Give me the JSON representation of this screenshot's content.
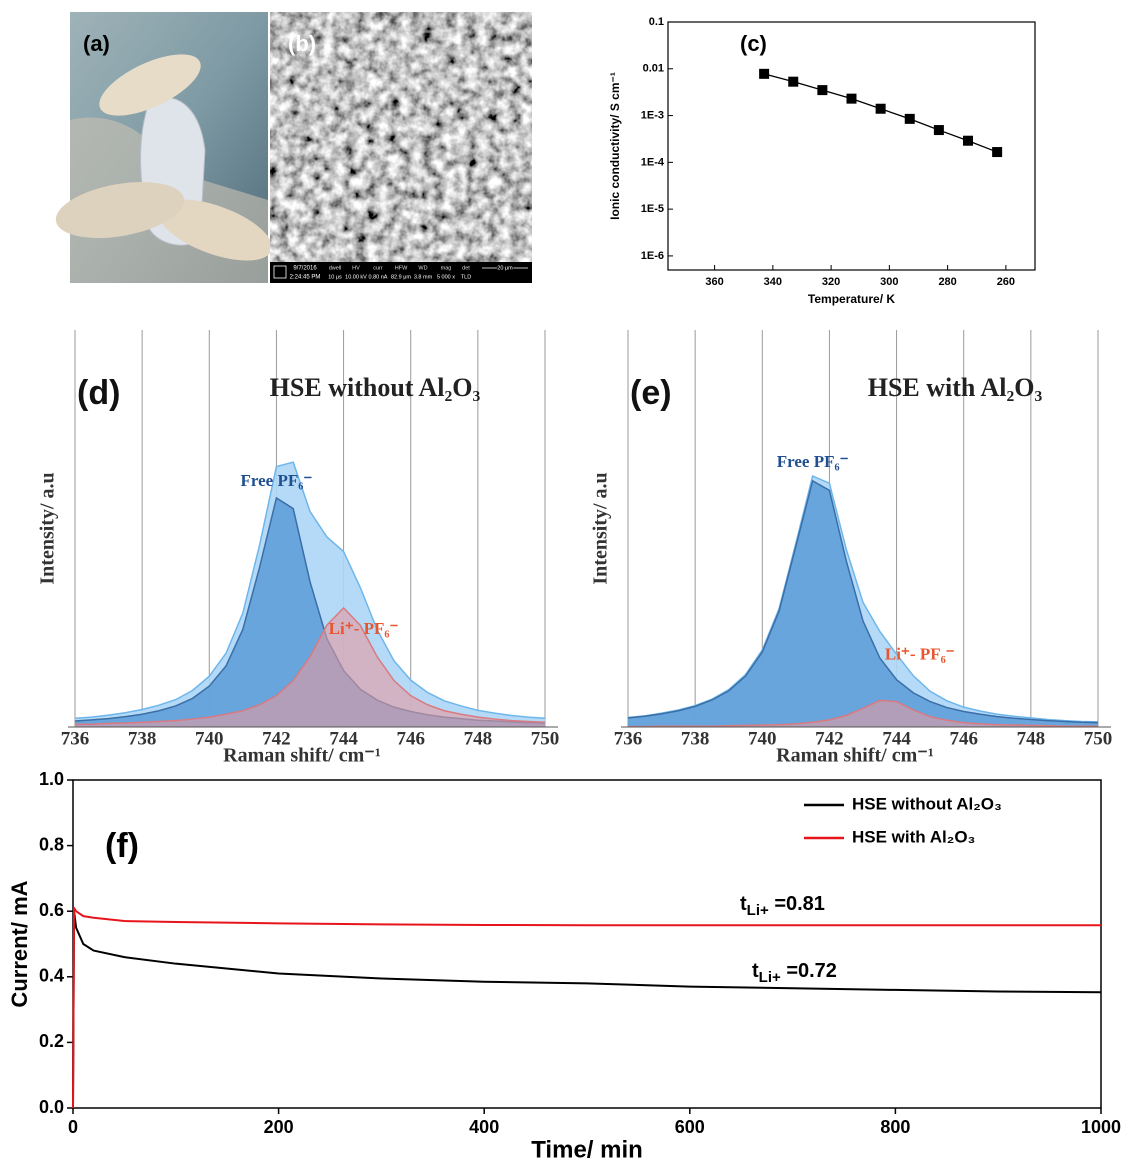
{
  "chart_data": [
    {
      "type": "photo",
      "label": "(a)"
    },
    {
      "type": "micrograph",
      "label": "(b)",
      "info_bar": {
        "date": "9/7/2016",
        "time": "2:24:45 PM",
        "fields": [
          {
            "name": "dwell",
            "value": "10 μs"
          },
          {
            "name": "HV",
            "value": "10.00 kV"
          },
          {
            "name": "curr",
            "value": "0.80 nA"
          },
          {
            "name": "HFW",
            "value": "82.9 μm"
          },
          {
            "name": "WD",
            "value": "3.8 mm"
          },
          {
            "name": "mag",
            "value": "5 000 x"
          },
          {
            "name": "det",
            "value": "TLD"
          }
        ],
        "scale_bar": "20 μm"
      }
    },
    {
      "type": "scatter",
      "label": "(c)",
      "x_label": "Temperature/ K",
      "y_label": "Ionic conductivity/ S cm⁻¹",
      "x": [
        343,
        333,
        323,
        313,
        303,
        293,
        283,
        273,
        263
      ],
      "values": [
        0.0078,
        0.0053,
        0.0035,
        0.0023,
        0.0014,
        0.00085,
        0.00049,
        0.00029,
        0.000166
      ],
      "color": "#000000",
      "marker": "square",
      "connect": true,
      "log_y": true,
      "xlim": [
        376,
        250
      ],
      "xticks": [
        360,
        340,
        320,
        300,
        280,
        260
      ],
      "ylim": [
        5e-07,
        0.1
      ],
      "yticks": [
        {
          "value": 1e-06,
          "label": "1E-6"
        },
        {
          "value": 1e-05,
          "label": "1E-5"
        },
        {
          "value": 0.0001,
          "label": "1E-4"
        },
        {
          "value": 0.001,
          "label": "1E-3"
        },
        0.01,
        0.1
      ]
    },
    {
      "type": "area",
      "label": "(d)",
      "title": "HSE without Al₂O₃",
      "x_label": "Raman shift/ cm⁻¹",
      "y_label": "Intensity/ a.u",
      "x": [
        736,
        736.5,
        737,
        737.5,
        738,
        738.5,
        739,
        739.5,
        740,
        740.5,
        741,
        741.5,
        742,
        742.5,
        743,
        743.5,
        744,
        744.5,
        745,
        745.5,
        746,
        746.5,
        747,
        747.5,
        748,
        748.5,
        749,
        749.5,
        750
      ],
      "xlim": [
        736,
        750
      ],
      "xticks": [
        736,
        738,
        740,
        742,
        744,
        746,
        748,
        750
      ],
      "ylim": [
        0,
        1
      ],
      "grid": true,
      "series": [
        {
          "color": "#acd6f6",
          "line_color": "#6db6ec",
          "values": [
            0.022,
            0.025,
            0.03,
            0.036,
            0.044,
            0.055,
            0.069,
            0.092,
            0.128,
            0.186,
            0.287,
            0.459,
            0.656,
            0.667,
            0.543,
            0.479,
            0.442,
            0.351,
            0.245,
            0.167,
            0.118,
            0.087,
            0.066,
            0.053,
            0.042,
            0.035,
            0.029,
            0.025,
            0.022
          ]
        },
        {
          "name": "Free PF₆⁻",
          "color": "#5f9ed8",
          "line_color": "#3b6ea6",
          "label_color": "#1f4f8f",
          "values": [
            0.015,
            0.018,
            0.021,
            0.026,
            0.032,
            0.041,
            0.053,
            0.072,
            0.103,
            0.154,
            0.246,
            0.403,
            0.577,
            0.55,
            0.366,
            0.223,
            0.142,
            0.095,
            0.068,
            0.05,
            0.039,
            0.031,
            0.025,
            0.021,
            0.017,
            0.015,
            0.013,
            0.011,
            0.01
          ]
        },
        {
          "name": "Li⁺- PF₆⁻",
          "color": "#e49aa0",
          "line_color": "#d97a80",
          "label_color": "#e8552e",
          "values": [
            0.007,
            0.007,
            0.009,
            0.01,
            0.012,
            0.014,
            0.016,
            0.02,
            0.025,
            0.032,
            0.041,
            0.056,
            0.079,
            0.117,
            0.177,
            0.256,
            0.3,
            0.256,
            0.177,
            0.117,
            0.079,
            0.056,
            0.041,
            0.032,
            0.025,
            0.02,
            0.016,
            0.014,
            0.012
          ]
        }
      ]
    },
    {
      "type": "area",
      "label": "(e)",
      "title": "HSE with Al₂O₃",
      "x_label": "Raman shift/ cm⁻¹",
      "y_label": "Intensity/ a.u",
      "x": [
        736,
        736.5,
        737,
        737.5,
        738,
        738.5,
        739,
        739.5,
        740,
        740.5,
        741,
        741.5,
        742,
        742.5,
        743,
        743.5,
        744,
        744.5,
        745,
        745.5,
        746,
        746.5,
        747,
        747.5,
        748,
        748.5,
        749,
        749.5,
        750
      ],
      "xlim": [
        736,
        750
      ],
      "xticks": [
        736,
        738,
        740,
        742,
        744,
        746,
        748,
        750
      ],
      "ylim": [
        0,
        1
      ],
      "grid": true,
      "series": [
        {
          "color": "#acd6f6",
          "line_color": "#6db6ec",
          "values": [
            0.024,
            0.028,
            0.035,
            0.043,
            0.054,
            0.07,
            0.094,
            0.132,
            0.194,
            0.298,
            0.463,
            0.632,
            0.614,
            0.448,
            0.314,
            0.241,
            0.183,
            0.129,
            0.09,
            0.066,
            0.05,
            0.04,
            0.032,
            0.027,
            0.023,
            0.019,
            0.016,
            0.014,
            0.013
          ]
        },
        {
          "name": "Free PF₆⁻",
          "color": "#5f9ed8",
          "line_color": "#3b6ea6",
          "label_color": "#1f4f8f",
          "values": [
            0.023,
            0.027,
            0.033,
            0.041,
            0.052,
            0.068,
            0.091,
            0.128,
            0.189,
            0.292,
            0.455,
            0.62,
            0.596,
            0.419,
            0.267,
            0.174,
            0.119,
            0.086,
            0.064,
            0.049,
            0.039,
            0.032,
            0.026,
            0.022,
            0.019,
            0.016,
            0.014,
            0.012,
            0.011
          ]
        },
        {
          "name": "Li⁺- PF₆⁻",
          "color": "#e49aa0",
          "line_color": "#d97a80",
          "label_color": "#e8552e",
          "values": [
            0.001,
            0.001,
            0.002,
            0.002,
            0.002,
            0.002,
            0.003,
            0.004,
            0.005,
            0.006,
            0.008,
            0.012,
            0.018,
            0.029,
            0.047,
            0.067,
            0.064,
            0.043,
            0.026,
            0.017,
            0.011,
            0.008,
            0.006,
            0.005,
            0.004,
            0.003,
            0.002,
            0.002,
            0.002
          ]
        }
      ]
    },
    {
      "type": "line",
      "label": "(f)",
      "x_label": "Time/ min",
      "y_label": "Current/ mA",
      "x": [
        0,
        1,
        3,
        10,
        20,
        50,
        100,
        200,
        300,
        400,
        500,
        600,
        700,
        800,
        900,
        1000
      ],
      "xlim": [
        0,
        1000
      ],
      "xticks": [
        0,
        200,
        400,
        600,
        800,
        1000
      ],
      "ylim": [
        0,
        1
      ],
      "yticks": [
        {
          "value": 0,
          "label": "0.0"
        },
        0.2,
        0.4,
        0.6,
        0.8,
        {
          "value": 1,
          "label": "1.0"
        }
      ],
      "legend": "upper right",
      "series": [
        {
          "name": "HSE without Al₂O₃",
          "color": "#000000",
          "values": [
            0,
            0.6,
            0.55,
            0.5,
            0.48,
            0.46,
            0.44,
            0.41,
            0.395,
            0.385,
            0.38,
            0.37,
            0.365,
            0.36,
            0.355,
            0.353
          ]
        },
        {
          "name": "HSE with Al₂O₃",
          "color": "#e8141b",
          "values": [
            0,
            0.61,
            0.6,
            0.585,
            0.58,
            0.57,
            0.567,
            0.563,
            0.56,
            0.558,
            0.557,
            0.557,
            0.557,
            0.557,
            0.557,
            0.557
          ]
        }
      ],
      "annotations": [
        {
          "text": "t",
          "sub": "Li+",
          "value_text": " =0.81"
        },
        {
          "text": "t",
          "sub": "Li+",
          "value_text": " =0.72"
        }
      ]
    }
  ]
}
